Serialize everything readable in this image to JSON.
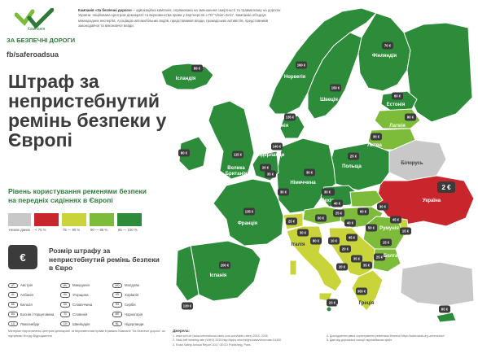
{
  "logo": {
    "small_text": "Кампанія",
    "title": "ЗА БЕЗПЕЧНІ ДОРОГИ",
    "fb": "fb/saferoadsua",
    "mark_icon": "checkmark-wings-icon",
    "colors": {
      "green": "#2d7a3a",
      "light": "#7dbb3a"
    }
  },
  "intro": {
    "lead": "Кампанія «За безпечні дороги»",
    "text": " – адвокаційна кампанія, спрямована на зменшення смертності та травматизму на дорогах України. Ініційована Центром демократії та верховенства права у партнерстві з ГО \"Vision Zero\". Кампанію об'єднує міжнародних експертів, Асоціацію автомобільних водіїв, представників влади, громадських активістів, представників законодавчої та виконавчої влади."
  },
  "title": "Штраф за непристебнутий ремінь безпеки у Європі",
  "legend": {
    "title": "Рівень користування ременями безпеки на передніх сидіннях в Європі",
    "items": [
      {
        "label": "Немає даних",
        "color": "#c8c8c8"
      },
      {
        "label": "< 75 %",
        "color": "#c8262c"
      },
      {
        "label": "75 — 90 %",
        "color": "#c9d43a"
      },
      {
        "label": "90 — 95 %",
        "color": "#7dbb3a"
      },
      {
        "label": "95 — 100 %",
        "color": "#2d8c3a"
      }
    ]
  },
  "fine": {
    "badge_icon": "euro-sign-icon",
    "badge_symbol": "€",
    "title": "Розмір штрафу за непристебнутий ремінь безпеки в Євро"
  },
  "abbreviations": [
    [
      {
        "code": "AT",
        "name": "Австрія"
      },
      {
        "code": "AL",
        "name": "Албанія"
      },
      {
        "code": "BE",
        "name": "Бельгія"
      },
      {
        "code": "BA",
        "name": "Боснія і Герцеговина"
      },
      {
        "code": "LU",
        "name": "Люксембург"
      }
    ],
    [
      {
        "code": "MK",
        "name": "Македонія"
      },
      {
        "code": "HU",
        "name": "Угорщина"
      },
      {
        "code": "SK",
        "name": "Словаччина"
      },
      {
        "code": "SI",
        "name": "Словенія"
      },
      {
        "code": "CH",
        "name": "Швейцарія"
      }
    ],
    [
      {
        "code": "MD",
        "name": "Молдова"
      },
      {
        "code": "HR",
        "name": "Хорватія"
      },
      {
        "code": "RS",
        "name": "Сербія"
      },
      {
        "code": "ME",
        "name": "Чорногорія"
      },
      {
        "code": "NL",
        "name": "Нідерланди"
      }
    ]
  ],
  "footnote": "Матеріал підготовлено Центром демократії та верховенства права в рамках Кампанії \"За безпечні дороги\" за підтримки Фонду Відродження",
  "sources_title": "Джерела:",
  "sources": [
    "1. www.tcrfl.de (www.international-rates.com.com/table-rates) 2014, 2016",
    "2. Seat-belt wearing rate (WHO) 2015 http://apps.who.int/gho/data/view.main.51430",
    "3. Road Safety Annual Report 2017 OECD Publishing, Paris",
    "4. Дослідження рівня користування ременями безпеки https://saferoads.org.ua/research",
    "5. Дані від дорожньої поліції європейських країн"
  ],
  "map": {
    "colors": {
      "sea": "#ffffff",
      "nodata": "#c8c8c8",
      "low": "#c8262c",
      "mid": "#c9d43a",
      "good": "#7dbb3a",
      "best": "#2d8c3a",
      "fine_badge": "#3b3b3b"
    },
    "countries": [
      {
        "name": "Ісландія",
        "fine": "89 €",
        "level": "best"
      },
      {
        "name": "Норвегія",
        "fine": "160 €",
        "level": "best"
      },
      {
        "name": "Швеція",
        "fine": "150 €",
        "level": "best"
      },
      {
        "name": "Фінляндія",
        "fine": "70 €",
        "level": "best"
      },
      {
        "name": "Естонія",
        "fine": "60 €",
        "level": "best"
      },
      {
        "name": "Латвія",
        "fine": "80 €",
        "level": "good"
      },
      {
        "name": "Литва",
        "fine": "30 €",
        "level": "good"
      },
      {
        "name": "Данія",
        "fine": "135 €",
        "level": "best"
      },
      {
        "name": "Ірландія",
        "fine": "80 €",
        "level": "best"
      },
      {
        "name": "Велика Британія",
        "fine": "115 €",
        "level": "best"
      },
      {
        "name": "Нідерланди",
        "fine": "140 €",
        "level": "best"
      },
      {
        "name": "Білорусь",
        "fine": "",
        "level": "nodata"
      },
      {
        "name": "Польща",
        "fine": "25 €",
        "level": "best"
      },
      {
        "name": "Німеччина",
        "fine": "30 €",
        "level": "best"
      },
      {
        "name": "Чехія",
        "fine": "40 €",
        "level": "best"
      },
      {
        "name": "Україна",
        "fine": "2 €",
        "level": "low"
      },
      {
        "name": "Франція",
        "fine": "135 €",
        "level": "best"
      },
      {
        "name": "Румунія",
        "fine": "45 €",
        "level": "good"
      },
      {
        "name": "Болгарія",
        "fine": "25 €",
        "level": "good"
      },
      {
        "name": "Італія",
        "fine": "80 €",
        "level": "mid"
      },
      {
        "name": "Іспанія",
        "fine": "200 €",
        "level": "best"
      },
      {
        "name": "Португалія",
        "fine": "120 €",
        "level": "best"
      },
      {
        "name": "Греція",
        "fine": "350 €",
        "level": "mid"
      },
      {
        "name": "Мальта",
        "fine": "23 €",
        "level": "best"
      },
      {
        "name": "Кіпр",
        "fine": "85 €",
        "level": "best"
      }
    ],
    "small_fines": [
      "35 €",
      "30 €",
      "25 €",
      "30 €",
      "50 €",
      "25 €",
      "40 €",
      "60 €",
      "50 €",
      "45 €",
      "10 €",
      "20 €",
      "35 €",
      "35 €",
      "20 €",
      "15 €",
      "15 €",
      "30 €",
      "40 €",
      "30 €",
      "20 €"
    ]
  }
}
